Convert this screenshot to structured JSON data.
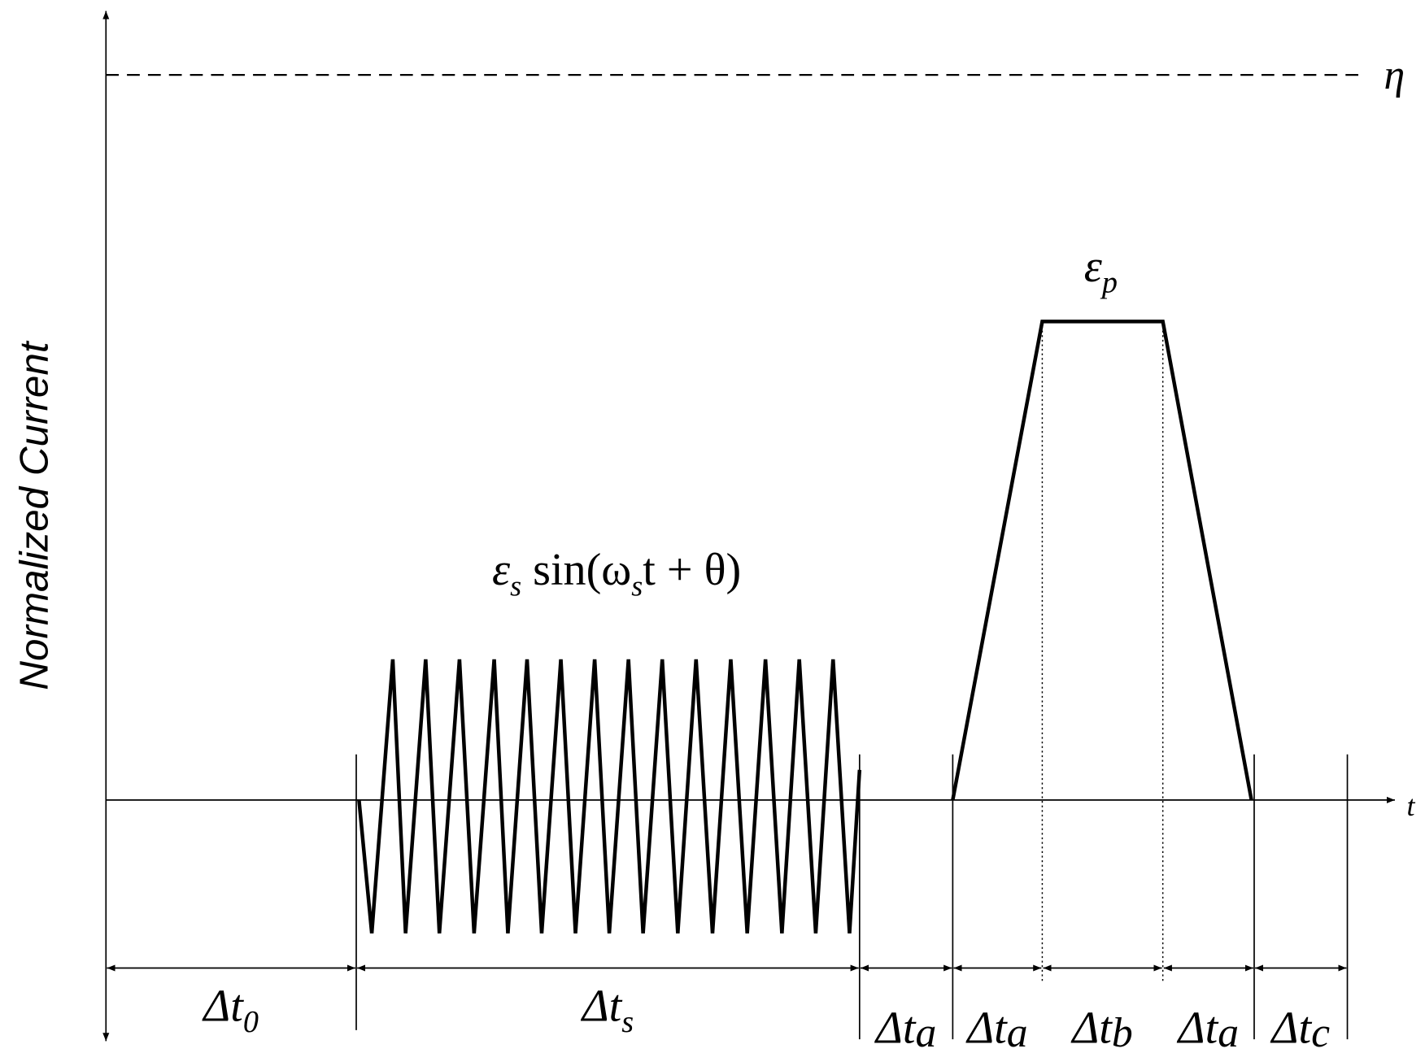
{
  "axes": {
    "y_label": "Normalized Current",
    "x_label": "t",
    "threshold_label": "η"
  },
  "signals": {
    "sine": {
      "parts": [
        {
          "text": "ε"
        },
        {
          "sub": "s"
        },
        {
          "text": " sin(ω"
        },
        {
          "sub": "s"
        },
        {
          "text": "t + θ)"
        }
      ]
    },
    "pulse": {
      "text": "ε",
      "sub": "p"
    }
  },
  "intervals": [
    {
      "text": "Δt",
      "sub": "0"
    },
    {
      "text": "Δt",
      "sub": "s"
    },
    {
      "text": "Δt",
      "sub": "a"
    },
    {
      "text": "Δt",
      "sub": "a"
    },
    {
      "text": "Δt",
      "sub": "b"
    },
    {
      "text": "Δt",
      "sub": "a"
    },
    {
      "text": "Δt",
      "sub": "c"
    }
  ]
}
